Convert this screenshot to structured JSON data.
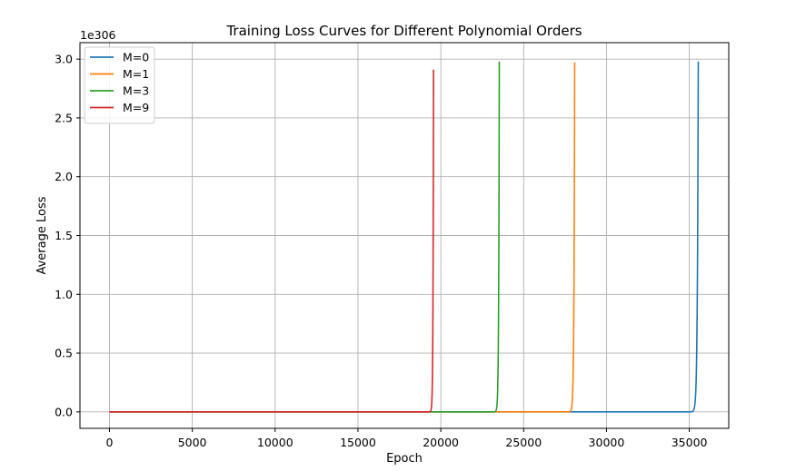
{
  "chart_data": {
    "type": "line",
    "title": "Training Loss Curves for Different Polynomial Orders",
    "xlabel": "Epoch",
    "ylabel": "Average Loss",
    "y_offset_text": "1e306",
    "xlim": [
      -1780,
      37380
    ],
    "ylim": [
      -0.14,
      3.14
    ],
    "xticks": [
      0,
      5000,
      10000,
      15000,
      20000,
      25000,
      30000,
      35000
    ],
    "xtick_labels": [
      "0",
      "5000",
      "10000",
      "15000",
      "20000",
      "25000",
      "30000",
      "35000"
    ],
    "yticks": [
      0.0,
      0.5,
      1.0,
      1.5,
      2.0,
      2.5,
      3.0
    ],
    "ytick_labels": [
      "0.0",
      "0.5",
      "1.0",
      "1.5",
      "2.0",
      "2.5",
      "3.0"
    ],
    "grid": true,
    "legend_position": "top-left",
    "series": [
      {
        "name": "M=0",
        "color": "#1f77b4",
        "start_epoch": 0,
        "end_epoch": 35540,
        "final_loss": 2.98
      },
      {
        "name": "M=1",
        "color": "#ff7f0e",
        "start_epoch": 0,
        "end_epoch": 28080,
        "final_loss": 2.97
      },
      {
        "name": "M=3",
        "color": "#2ca02c",
        "start_epoch": 0,
        "end_epoch": 23530,
        "final_loss": 2.98
      },
      {
        "name": "M=9",
        "color": "#d62728",
        "start_epoch": 0,
        "end_epoch": 19560,
        "final_loss": 2.91
      }
    ]
  }
}
